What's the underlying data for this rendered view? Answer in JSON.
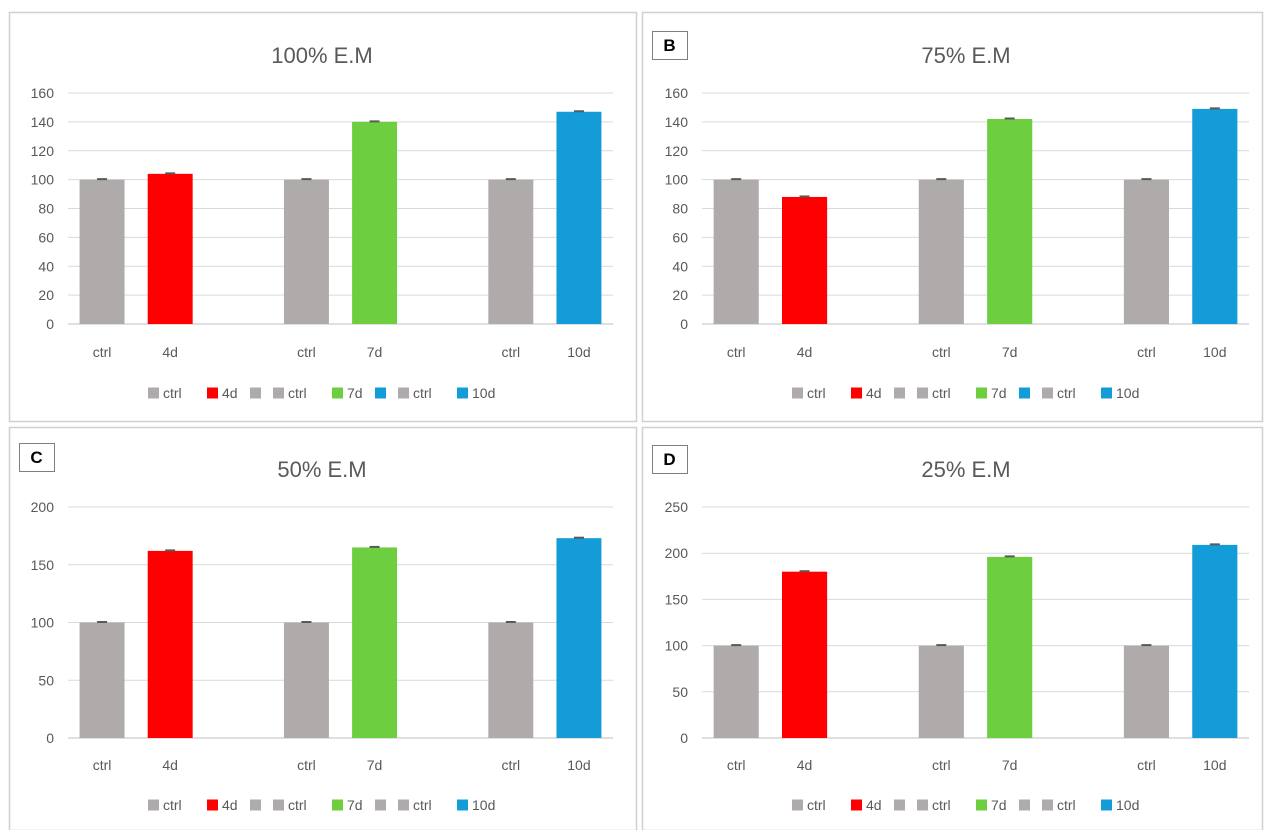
{
  "colors": {
    "ctrl": "#afabab",
    "4d": "#ff0000",
    "7d": "#6dce3f",
    "10d": "#149cd8",
    "grid": "#d9d9d9",
    "axis_text": "#595959",
    "frame": "#d0d0d0",
    "error_bar": "#595959"
  },
  "chart_data": [
    {
      "type": "bar",
      "panel_label": "",
      "title": "100% E.M",
      "categories": [
        "ctrl",
        "4d",
        "",
        "ctrl",
        "7d",
        "",
        "ctrl",
        "10d"
      ],
      "values": [
        100,
        104,
        null,
        100,
        140,
        null,
        100,
        147
      ],
      "bar_colors": [
        "ctrl",
        "4d",
        null,
        "ctrl",
        "7d",
        null,
        "ctrl",
        "10d"
      ],
      "ylim": [
        0,
        160
      ],
      "yticks": [
        "0",
        "20",
        "40",
        "60",
        "80",
        "100",
        "120",
        "140",
        "160"
      ],
      "grid": true,
      "error_bars": true,
      "legend_position": "bottom",
      "legend": [
        {
          "label": "ctrl",
          "color": "ctrl"
        },
        {
          "label": "4d",
          "color": "4d"
        },
        {
          "label": "",
          "color": "ctrl"
        },
        {
          "label": "ctrl",
          "color": "ctrl"
        },
        {
          "label": "7d",
          "color": "7d"
        },
        {
          "label": "",
          "color": "10d"
        },
        {
          "label": "ctrl",
          "color": "ctrl"
        },
        {
          "label": "10d",
          "color": "10d"
        }
      ]
    },
    {
      "type": "bar",
      "panel_label": "B",
      "title": "75% E.M",
      "categories": [
        "ctrl",
        "4d",
        "",
        "ctrl",
        "7d",
        "",
        "ctrl",
        "10d"
      ],
      "values": [
        100,
        88,
        null,
        100,
        142,
        null,
        100,
        149
      ],
      "bar_colors": [
        "ctrl",
        "4d",
        null,
        "ctrl",
        "7d",
        null,
        "ctrl",
        "10d"
      ],
      "ylim": [
        0,
        160
      ],
      "yticks": [
        "0",
        "20",
        "40",
        "60",
        "80",
        "100",
        "120",
        "140",
        "160"
      ],
      "grid": true,
      "error_bars": true,
      "legend_position": "bottom",
      "legend": [
        {
          "label": "ctrl",
          "color": "ctrl"
        },
        {
          "label": "4d",
          "color": "4d"
        },
        {
          "label": "",
          "color": "ctrl"
        },
        {
          "label": "ctrl",
          "color": "ctrl"
        },
        {
          "label": "7d",
          "color": "7d"
        },
        {
          "label": "",
          "color": "10d"
        },
        {
          "label": "ctrl",
          "color": "ctrl"
        },
        {
          "label": "10d",
          "color": "10d"
        }
      ]
    },
    {
      "type": "bar",
      "panel_label": "C",
      "title": "50% E.M",
      "categories": [
        "ctrl",
        "4d",
        "",
        "ctrl",
        "7d",
        "",
        "ctrl",
        "10d"
      ],
      "values": [
        100,
        162,
        null,
        100,
        165,
        null,
        100,
        173
      ],
      "bar_colors": [
        "ctrl",
        "4d",
        null,
        "ctrl",
        "7d",
        null,
        "ctrl",
        "10d"
      ],
      "ylim": [
        0,
        200
      ],
      "yticks": [
        "0",
        "50",
        "100",
        "150",
        "200"
      ],
      "grid": true,
      "error_bars": true,
      "legend_position": "bottom",
      "legend": [
        {
          "label": "ctrl",
          "color": "ctrl"
        },
        {
          "label": "4d",
          "color": "4d"
        },
        {
          "label": "",
          "color": "ctrl"
        },
        {
          "label": "ctrl",
          "color": "ctrl"
        },
        {
          "label": "7d",
          "color": "7d"
        },
        {
          "label": "",
          "color": "ctrl"
        },
        {
          "label": "ctrl",
          "color": "ctrl"
        },
        {
          "label": "10d",
          "color": "10d"
        }
      ]
    },
    {
      "type": "bar",
      "panel_label": "D",
      "title": "25% E.M",
      "categories": [
        "ctrl",
        "4d",
        "",
        "ctrl",
        "7d",
        "",
        "ctrl",
        "10d"
      ],
      "values": [
        100,
        180,
        null,
        100,
        196,
        null,
        100,
        209
      ],
      "bar_colors": [
        "ctrl",
        "4d",
        null,
        "ctrl",
        "7d",
        null,
        "ctrl",
        "10d"
      ],
      "ylim": [
        0,
        250
      ],
      "yticks": [
        "0",
        "50",
        "100",
        "150",
        "200",
        "250"
      ],
      "grid": true,
      "error_bars": true,
      "legend_position": "bottom",
      "legend": [
        {
          "label": "ctrl",
          "color": "ctrl"
        },
        {
          "label": "4d",
          "color": "4d"
        },
        {
          "label": "",
          "color": "ctrl"
        },
        {
          "label": "ctrl",
          "color": "ctrl"
        },
        {
          "label": "7d",
          "color": "7d"
        },
        {
          "label": "",
          "color": "ctrl"
        },
        {
          "label": "ctrl",
          "color": "ctrl"
        },
        {
          "label": "10d",
          "color": "10d"
        }
      ]
    }
  ]
}
